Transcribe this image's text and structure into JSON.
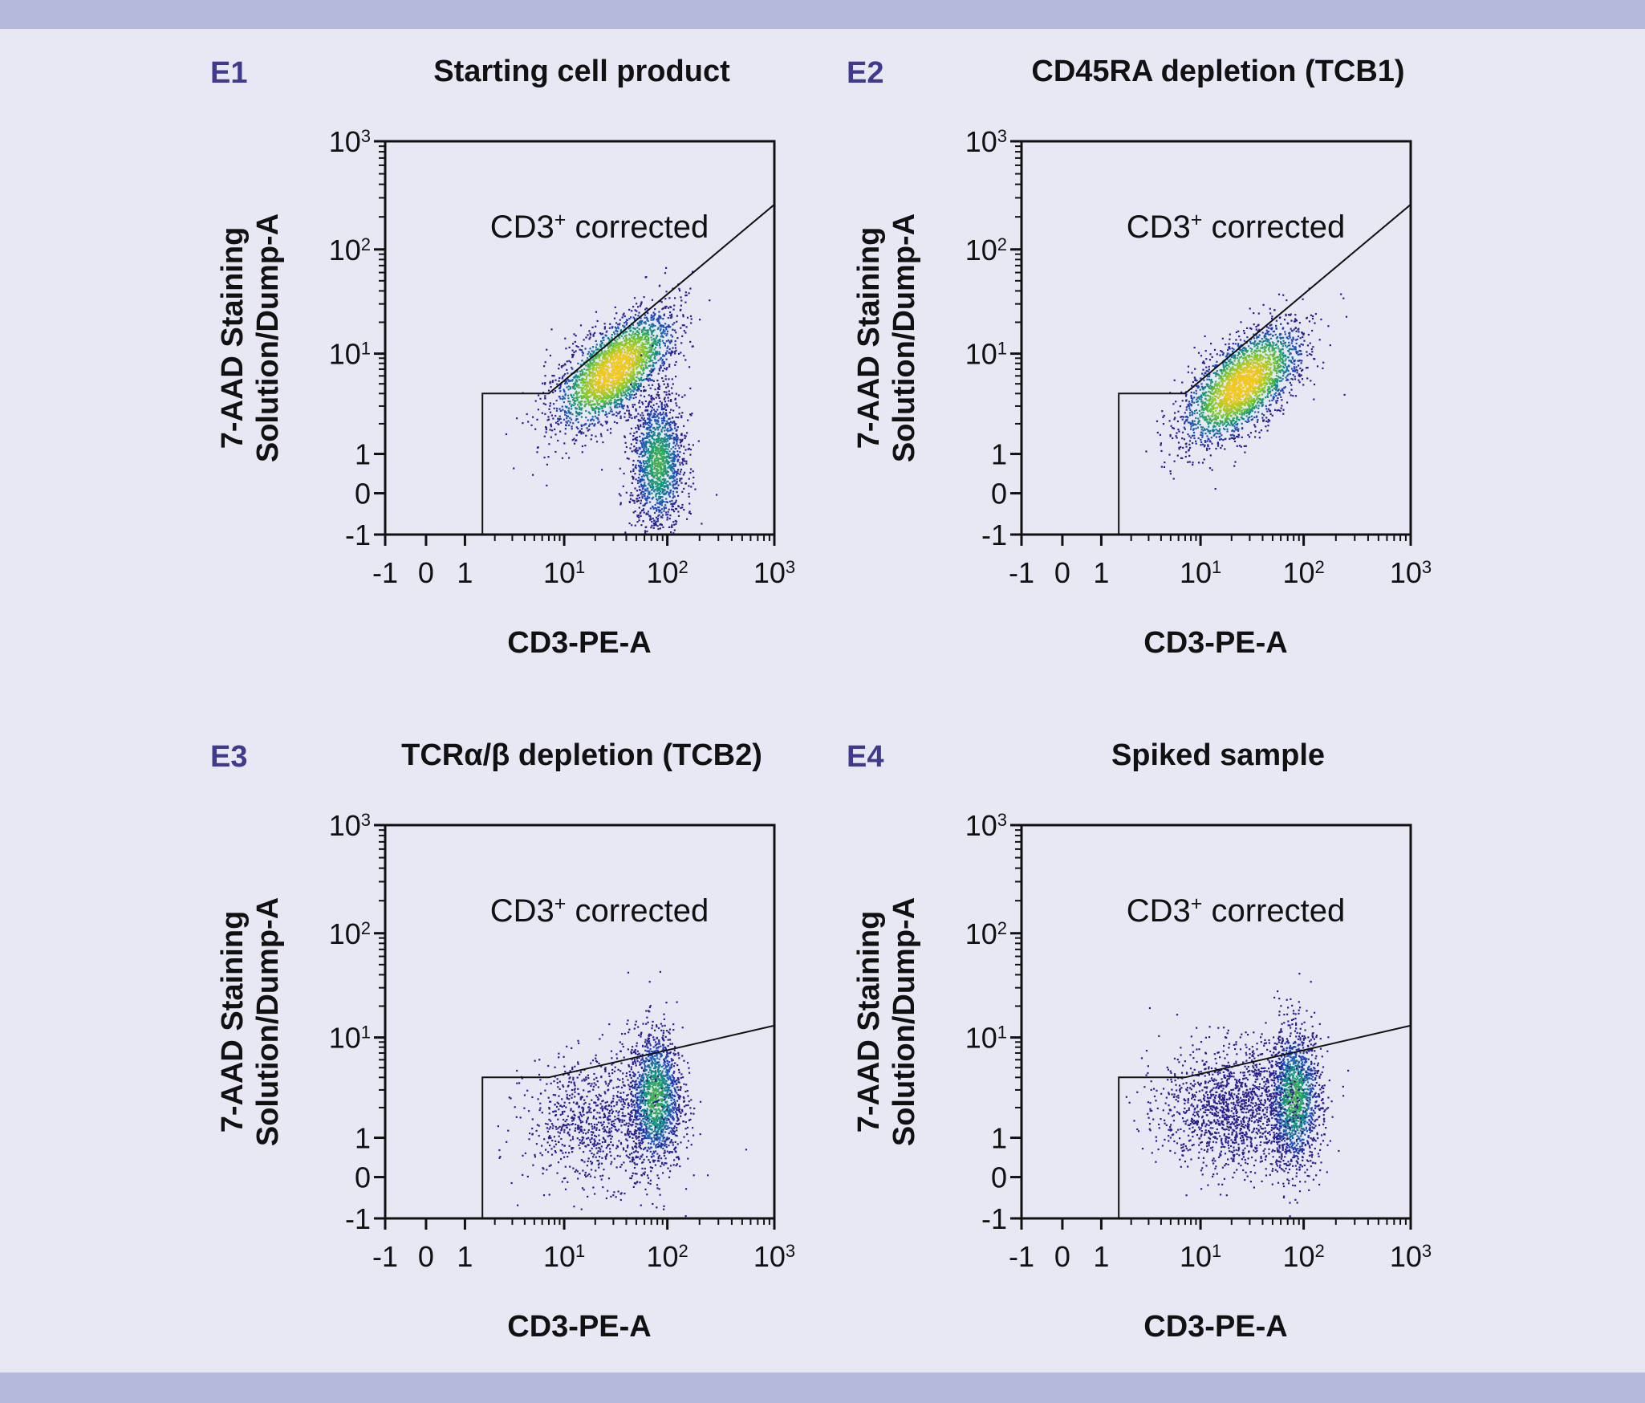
{
  "colors": {
    "background": "#e7e8f4",
    "band": "#b5b9dc",
    "panel_id": "#3f3a8c",
    "text": "#111111"
  },
  "chart_data": [
    {
      "type": "scatter",
      "id": "E1",
      "title": "Starting cell product",
      "xlabel": "CD3-PE-A",
      "ylabel": [
        "7-AAD Staining",
        "Solution/Dump-A"
      ],
      "gate_label": "CD3⁺ corrected",
      "scale": "biexponential",
      "xlim": [
        -1,
        1000
      ],
      "ylim": [
        -1,
        1000
      ],
      "x_ticks": [
        "-1",
        "0",
        "1",
        "10¹",
        "10²",
        "10³"
      ],
      "y_ticks": [
        "-1",
        "0",
        "1",
        "10¹",
        "10²",
        "10³"
      ],
      "gate_polygon": [
        [
          1.5,
          -1
        ],
        [
          1.5,
          4
        ],
        [
          7,
          4
        ],
        [
          1000,
          260
        ],
        [
          1000,
          -1
        ]
      ],
      "populations": [
        {
          "name": "main",
          "center": [
            30,
            7
          ],
          "density": "high",
          "spread": "diagonal"
        },
        {
          "name": "secondary",
          "center": [
            80,
            0.8
          ],
          "density": "medium",
          "spread": "vertical"
        }
      ]
    },
    {
      "type": "scatter",
      "id": "E2",
      "title": "CD45RA depletion (TCB1)",
      "xlabel": "CD3-PE-A",
      "ylabel": [
        "7-AAD Staining",
        "Solution/Dump-A"
      ],
      "gate_label": "CD3⁺ corrected",
      "scale": "biexponential",
      "xlim": [
        -1,
        1000
      ],
      "ylim": [
        -1,
        1000
      ],
      "x_ticks": [
        "-1",
        "0",
        "1",
        "10¹",
        "10²",
        "10³"
      ],
      "y_ticks": [
        "-1",
        "0",
        "1",
        "10¹",
        "10²",
        "10³"
      ],
      "gate_polygon": [
        [
          1.5,
          -1
        ],
        [
          1.5,
          4
        ],
        [
          7,
          4
        ],
        [
          1000,
          260
        ],
        [
          1000,
          -1
        ]
      ],
      "populations": [
        {
          "name": "main",
          "center": [
            25,
            5
          ],
          "density": "high",
          "spread": "diagonal"
        }
      ]
    },
    {
      "type": "scatter",
      "id": "E3",
      "title": "TCRα/β depletion (TCB2)",
      "xlabel": "CD3-PE-A",
      "ylabel": [
        "7-AAD Staining",
        "Solution/Dump-A"
      ],
      "gate_label": "CD3⁺ corrected",
      "scale": "biexponential",
      "xlim": [
        -1,
        1000
      ],
      "ylim": [
        -1,
        1000
      ],
      "x_ticks": [
        "-1",
        "0",
        "1",
        "10¹",
        "10²",
        "10³"
      ],
      "y_ticks": [
        "-1",
        "0",
        "1",
        "10¹",
        "10²",
        "10³"
      ],
      "gate_polygon": [
        [
          1.5,
          -1
        ],
        [
          1.5,
          4
        ],
        [
          7,
          4
        ],
        [
          1000,
          13
        ],
        [
          1000,
          -1
        ]
      ],
      "populations": [
        {
          "name": "main",
          "center": [
            75,
            2.5
          ],
          "density": "medium",
          "spread": "vertical"
        },
        {
          "name": "scatter",
          "center": [
            20,
            1.5
          ],
          "density": "low",
          "spread": "broad"
        }
      ]
    },
    {
      "type": "scatter",
      "id": "E4",
      "title": "Spiked sample",
      "xlabel": "CD3-PE-A",
      "ylabel": [
        "7-AAD Staining",
        "Solution/Dump-A"
      ],
      "gate_label": "CD3⁺ corrected",
      "scale": "biexponential",
      "xlim": [
        -1,
        1000
      ],
      "ylim": [
        -1,
        1000
      ],
      "x_ticks": [
        "-1",
        "0",
        "1",
        "10¹",
        "10²",
        "10³"
      ],
      "y_ticks": [
        "-1",
        "0",
        "1",
        "10¹",
        "10²",
        "10³"
      ],
      "gate_polygon": [
        [
          1.5,
          -1
        ],
        [
          1.5,
          4
        ],
        [
          7,
          4
        ],
        [
          1000,
          13
        ],
        [
          1000,
          -1
        ]
      ],
      "populations": [
        {
          "name": "main",
          "center": [
            80,
            2.5
          ],
          "density": "medium",
          "spread": "vertical"
        },
        {
          "name": "scatter",
          "center": [
            20,
            2
          ],
          "density": "medium",
          "spread": "broad"
        }
      ]
    }
  ]
}
